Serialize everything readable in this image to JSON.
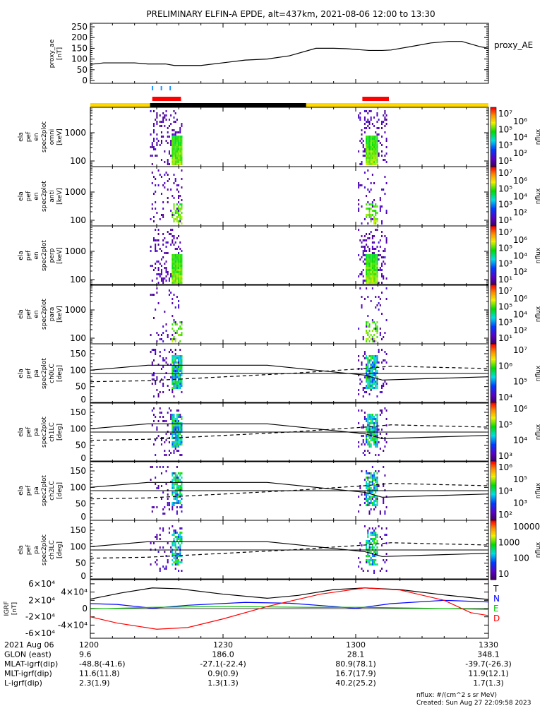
{
  "chart_data": {
    "type": "spectrogram-stack",
    "title": "PRELIMINARY ELFIN-A EPDE, alt=437km, 2021-08-06 12:00 to 13:30",
    "xlim_minutes": [
      0,
      90
    ],
    "x_ticks": [
      "1200",
      "1230",
      "1300",
      "1330"
    ],
    "proxy_ae": {
      "ylabel": [
        "proxy_ae",
        "[nT]"
      ],
      "legend": "proxy_AE",
      "yticks": [
        "0",
        "50",
        "100",
        "150",
        "200",
        "250"
      ],
      "ylim": [
        0,
        262
      ],
      "points": [
        [
          0,
          75
        ],
        [
          3,
          82
        ],
        [
          10,
          82
        ],
        [
          13,
          77
        ],
        [
          17,
          77
        ],
        [
          19,
          70
        ],
        [
          25,
          70
        ],
        [
          31,
          85
        ],
        [
          35,
          95
        ],
        [
          40,
          100
        ],
        [
          45,
          115
        ],
        [
          51,
          150
        ],
        [
          55,
          150
        ],
        [
          58,
          148
        ],
        [
          63,
          140
        ],
        [
          66,
          140
        ],
        [
          68,
          142
        ],
        [
          73,
          160
        ],
        [
          77,
          175
        ],
        [
          81,
          182
        ],
        [
          84,
          182
        ],
        [
          88,
          158
        ],
        [
          90,
          150
        ]
      ]
    },
    "science_zone_ticks_minutes": [
      13.9,
      15.9,
      17.9
    ],
    "science_intervals_minutes": [
      [
        14,
        20.5
      ],
      [
        61.5,
        67.5
      ]
    ],
    "sunlight_bar": [
      {
        "from": 0,
        "to": 13.5,
        "color": "#ffd800"
      },
      {
        "from": 13.5,
        "to": 48.8,
        "color": "#000000"
      },
      {
        "from": 48.8,
        "to": 90,
        "color": "#ffd800"
      }
    ],
    "bursts_minutes": [
      [
        13.5,
        20.8
      ],
      [
        60.5,
        67
      ]
    ],
    "panels": [
      {
        "kind": "energy",
        "label": [
          "ela",
          "pef",
          "en",
          "spec2plot",
          "omni",
          "[keV]"
        ],
        "yticks": [
          "100",
          "1000"
        ],
        "ylim_log": [
          1.8,
          3.9
        ],
        "zlabel": "nflux",
        "cbar": [
          "10¹",
          "10²",
          "10³",
          "10⁴",
          "10⁵",
          "10⁶",
          "10⁷"
        ],
        "intensity": 1.0
      },
      {
        "kind": "energy",
        "label": [
          "ela",
          "pef",
          "en",
          "spec2plot",
          "anti",
          "[keV]"
        ],
        "yticks": [
          "100",
          "1000"
        ],
        "ylim_log": [
          1.8,
          3.9
        ],
        "zlabel": "nflux",
        "cbar": [
          "10¹",
          "10²",
          "10³",
          "10⁴",
          "10⁵",
          "10⁶",
          "10⁷"
        ],
        "intensity": 0.45
      },
      {
        "kind": "energy",
        "label": [
          "ela",
          "pef",
          "en",
          "spec2plot",
          "perp",
          "[keV]"
        ],
        "yticks": [
          "100",
          "1000"
        ],
        "ylim_log": [
          1.8,
          3.9
        ],
        "zlabel": "nflux",
        "cbar": [
          "10¹",
          "10²",
          "10³",
          "10⁴",
          "10⁵",
          "10⁶",
          "10⁷"
        ],
        "intensity": 1.0
      },
      {
        "kind": "energy",
        "label": [
          "ela",
          "pef",
          "en",
          "spec2plot",
          "para",
          "[keV]"
        ],
        "yticks": [
          "100",
          "1000"
        ],
        "ylim_log": [
          1.8,
          3.9
        ],
        "zlabel": "nflux",
        "cbar": [
          "10¹",
          "10²",
          "10³",
          "10⁴",
          "10⁵",
          "10⁶",
          "10⁷"
        ],
        "intensity": 0.35
      },
      {
        "kind": "pa",
        "label": [
          "ela",
          "pef",
          "pa",
          "spec2plot",
          "ch0LC",
          "[deg]"
        ],
        "yticks": [
          "0",
          "50",
          "100",
          "150"
        ],
        "ylim": [
          0,
          180
        ],
        "zlabel": "nflux",
        "cbar": [
          "10⁴",
          "10⁵",
          "10⁶",
          "10⁷"
        ],
        "intensity": 0.9
      },
      {
        "kind": "pa",
        "label": [
          "ela",
          "pef",
          "pa",
          "spec2plot",
          "ch1LC",
          "[deg]"
        ],
        "yticks": [
          "0",
          "50",
          "100",
          "150"
        ],
        "ylim": [
          0,
          180
        ],
        "zlabel": "nflux",
        "cbar": [
          "10³",
          "10⁴",
          "10⁵",
          "10⁶"
        ],
        "intensity": 0.8
      },
      {
        "kind": "pa",
        "label": [
          "ela",
          "pef",
          "pa",
          "spec2plot",
          "ch2LC",
          "[deg]"
        ],
        "yticks": [
          "0",
          "50",
          "100",
          "150"
        ],
        "ylim": [
          0,
          180
        ],
        "zlabel": "nflux",
        "cbar": [
          "10²",
          "10³",
          "10⁴",
          "10⁵",
          "10⁶"
        ],
        "intensity": 0.7
      },
      {
        "kind": "pa",
        "label": [
          "ela",
          "pef",
          "pa",
          "spec2plot",
          "ch3LC",
          "[deg]"
        ],
        "yticks": [
          "0",
          "50",
          "100",
          "150"
        ],
        "ylim": [
          0,
          180
        ],
        "zlabel": "nflux",
        "cbar": [
          "10",
          "100",
          "1000",
          "10000"
        ],
        "intensity": 0.6
      }
    ],
    "loss_cone_solid": [
      [
        0,
        100
      ],
      [
        13,
        115
      ],
      [
        40,
        115
      ],
      [
        62,
        85
      ],
      [
        66,
        70
      ],
      [
        90,
        80
      ]
    ],
    "loss_cone_dashed": [
      [
        0,
        65
      ],
      [
        13,
        68
      ],
      [
        45,
        90
      ],
      [
        62,
        105
      ],
      [
        68,
        112
      ],
      [
        90,
        105
      ]
    ],
    "igrf": {
      "ylabel": [
        "IGRF",
        "[nT]"
      ],
      "yticks": [
        "-6×10⁴",
        "-4×10⁴",
        "-2×10⁴",
        "0",
        "2×10⁴",
        "4×10⁴",
        "6×10⁴"
      ],
      "ylim": [
        -65000,
        65000
      ],
      "series": [
        {
          "name": "T",
          "color": "#000000",
          "points": [
            [
              0,
              23000
            ],
            [
              7,
              38000
            ],
            [
              14,
              50000
            ],
            [
              20,
              48000
            ],
            [
              30,
              35000
            ],
            [
              40,
              25000
            ],
            [
              47,
              32000
            ],
            [
              55,
              46000
            ],
            [
              62,
              50000
            ],
            [
              70,
              46000
            ],
            [
              80,
              33000
            ],
            [
              90,
              22000
            ]
          ]
        },
        {
          "name": "N",
          "color": "#0000ff",
          "points": [
            [
              0,
              12000
            ],
            [
              6,
              10000
            ],
            [
              14,
              1000
            ],
            [
              22,
              8000
            ],
            [
              35,
              15000
            ],
            [
              45,
              13000
            ],
            [
              55,
              5000
            ],
            [
              60,
              500
            ],
            [
              68,
              12000
            ],
            [
              80,
              20000
            ],
            [
              90,
              16000
            ]
          ]
        },
        {
          "name": "E",
          "color": "#00c000",
          "points": [
            [
              0,
              -1000
            ],
            [
              14,
              3000
            ],
            [
              30,
              5000
            ],
            [
              50,
              3000
            ],
            [
              62,
              3000
            ],
            [
              75,
              1000
            ],
            [
              90,
              -2000
            ]
          ]
        },
        {
          "name": "D",
          "color": "#ff0000",
          "points": [
            [
              0,
              -20000
            ],
            [
              6,
              -35000
            ],
            [
              15,
              -50000
            ],
            [
              22,
              -46000
            ],
            [
              30,
              -25000
            ],
            [
              40,
              5000
            ],
            [
              52,
              35000
            ],
            [
              62,
              50000
            ],
            [
              70,
              45000
            ],
            [
              80,
              20000
            ],
            [
              86,
              -10000
            ],
            [
              90,
              -17000
            ]
          ]
        }
      ]
    },
    "ephemeris": {
      "rows": [
        {
          "label": "2021 Aug 06",
          "values": [
            "1200",
            "1230",
            "1300",
            "1330"
          ]
        },
        {
          "label": "GLON (east)",
          "values": [
            "9.6",
            "186.0",
            "28.1",
            "348.1"
          ]
        },
        {
          "label": "MLAT-igrf(dip)",
          "values": [
            "-48.8(-41.6)",
            "-27.1(-22.4)",
            "80.9(78.1)",
            "-39.7(-26.3)"
          ]
        },
        {
          "label": "MLT-igrf(dip)",
          "values": [
            "11.6(11.8)",
            "0.9(0.9)",
            "16.7(17.9)",
            "11.9(12.1)"
          ]
        },
        {
          "label": "L-igrf(dip)",
          "values": [
            "2.3(1.9)",
            "1.3(1.3)",
            "40.2(25.2)",
            "1.7(1.3)"
          ]
        }
      ]
    },
    "footer": {
      "units": "nflux: #/(cm^2 s sr MeV)",
      "created": "Created: Sun Aug 27 22:09:58 2023"
    }
  }
}
